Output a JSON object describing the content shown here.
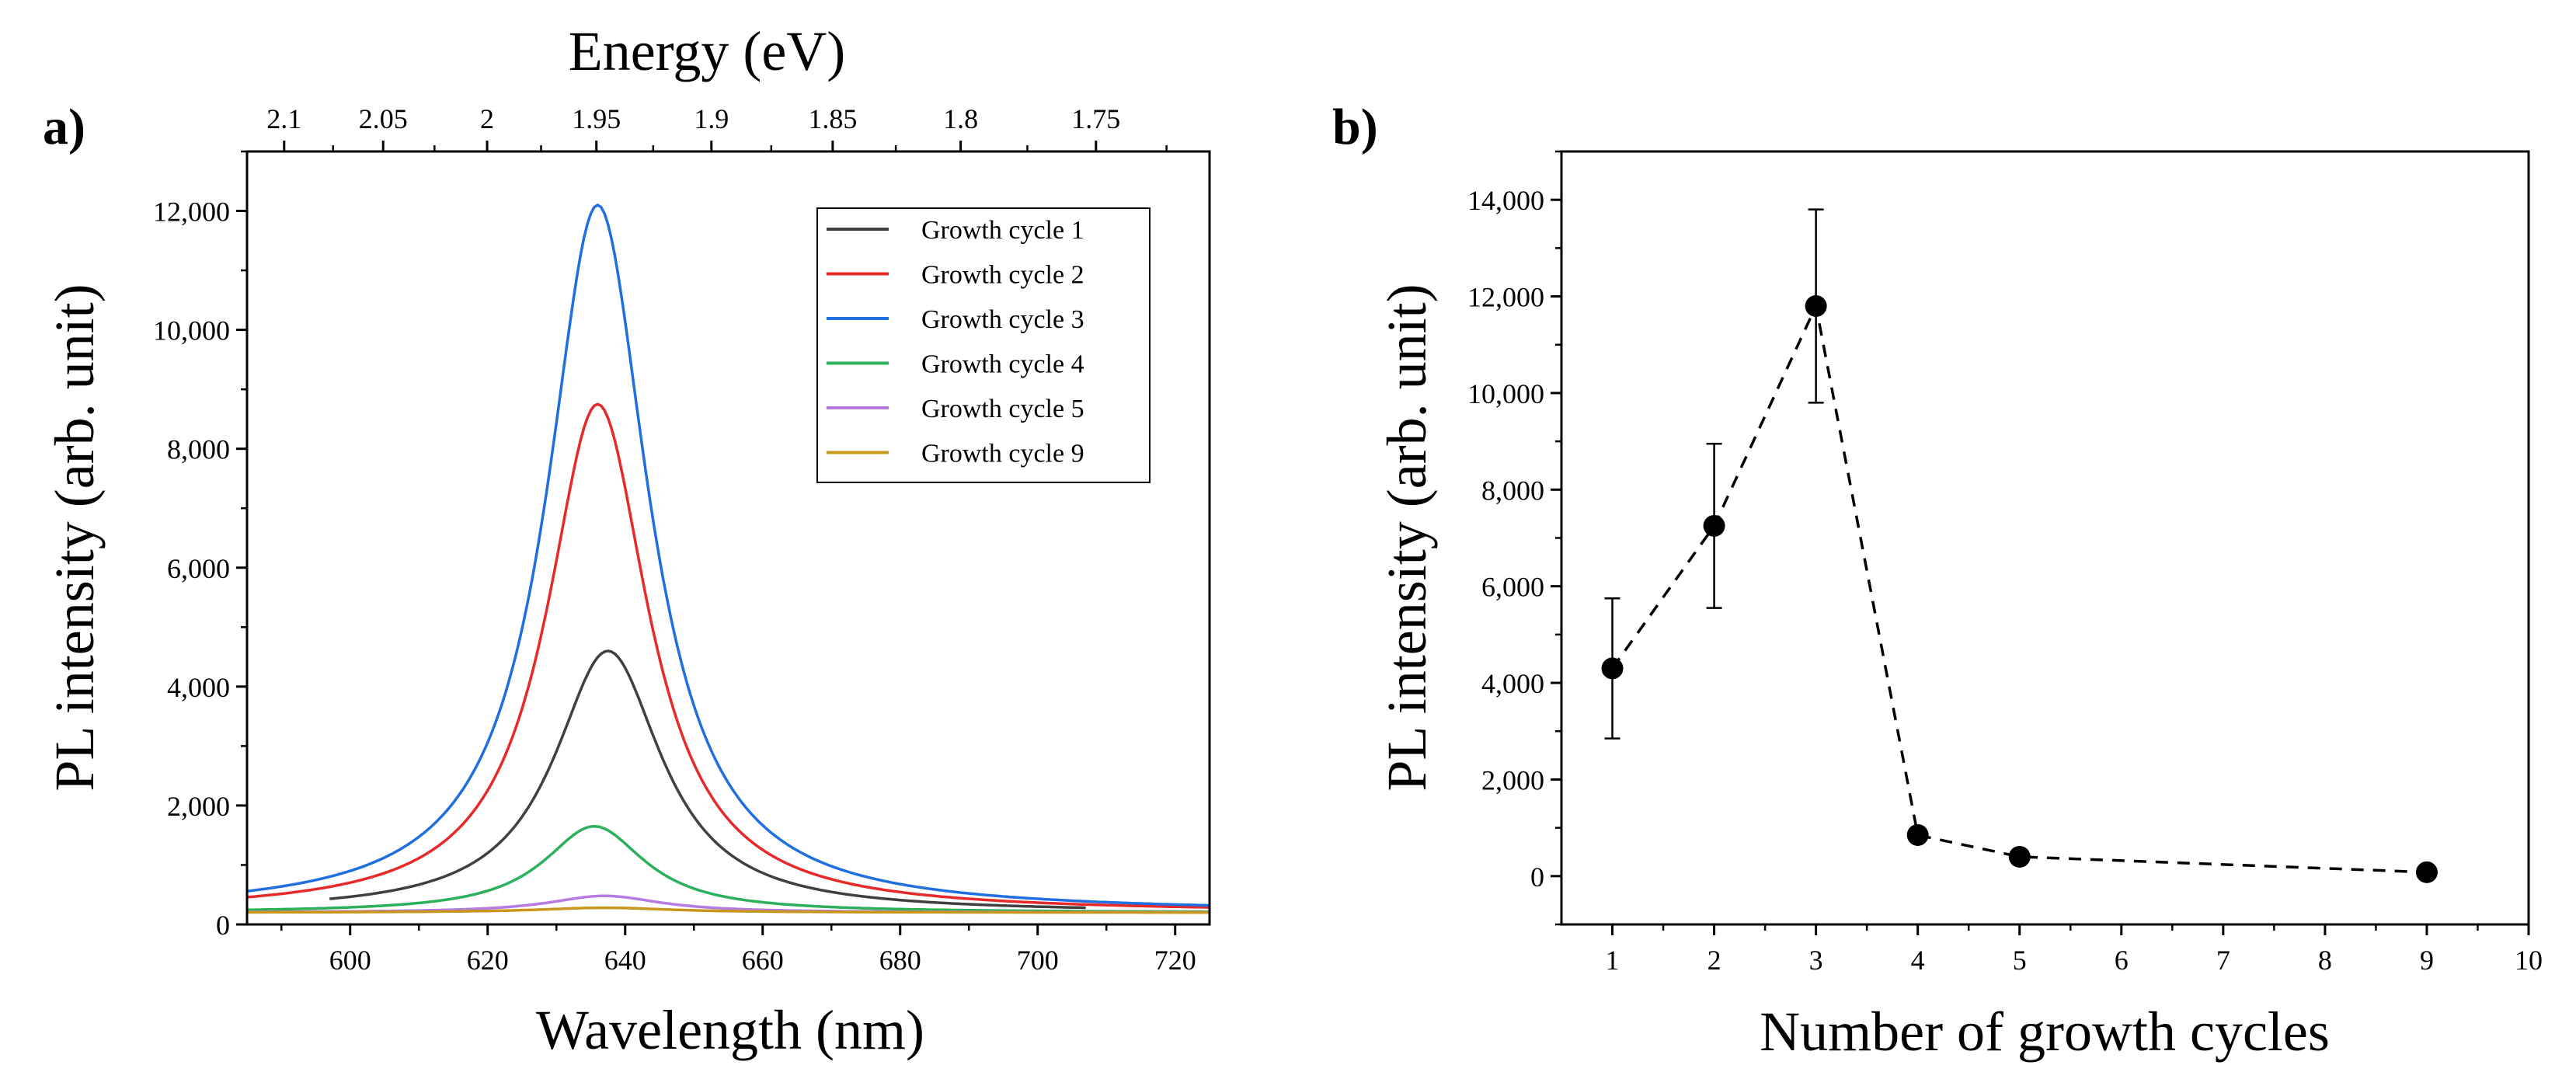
{
  "chart_data": [
    {
      "panel": "a)",
      "type": "line",
      "xlabel": "Wavelength (nm)",
      "ylabel": "PL intensity (arb. unit)",
      "top_xlabel": "Energy (eV)",
      "xlim": [
        585,
        725
      ],
      "ylim": [
        0,
        13000
      ],
      "x_ticks": [
        600,
        620,
        640,
        660,
        680,
        700,
        720
      ],
      "y_ticks": [
        0,
        2000,
        4000,
        6000,
        8000,
        10000,
        12000
      ],
      "y_tick_labels": [
        "0",
        "2,000",
        "4,000",
        "6,000",
        "8,000",
        "10,000",
        "12,000"
      ],
      "top_ticks": [
        2.1,
        2.05,
        2,
        1.95,
        1.9,
        1.85,
        1.8,
        1.75
      ],
      "top_tick_labels": [
        "2.1",
        "2.05",
        "2",
        "1.95",
        "1.9",
        "1.85",
        "1.8",
        "1.75"
      ],
      "legend_position": "top-right",
      "series": [
        {
          "name": "Growth cycle 1",
          "color": "#404040",
          "peak": 4600,
          "center": 637.5,
          "gamma": 9.5,
          "baseline": 200
        },
        {
          "name": "Growth cycle 2",
          "color": "#e8292a",
          "peak": 8750,
          "center": 636,
          "gamma": 9.0,
          "baseline": 200
        },
        {
          "name": "Growth cycle 3",
          "color": "#1f6fe0",
          "peak": 12100,
          "center": 636,
          "gamma": 9.0,
          "baseline": 200
        },
        {
          "name": "Growth cycle 4",
          "color": "#2cb05b",
          "peak": 1650,
          "center": 635.5,
          "gamma": 9.0,
          "baseline": 200
        },
        {
          "name": "Growth cycle 5",
          "color": "#b57be0",
          "peak": 480,
          "center": 637,
          "gamma": 10.0,
          "baseline": 200
        },
        {
          "name": "Growth cycle 9",
          "color": "#c8961a",
          "peak": 280,
          "center": 637,
          "gamma": 12.0,
          "baseline": 200
        }
      ]
    },
    {
      "panel": "b)",
      "type": "scatter",
      "xlabel": "Number of growth cycles",
      "ylabel": "PL intensity (arb. unit)",
      "xlim": [
        0.5,
        10
      ],
      "ylim": [
        -1000,
        15000
      ],
      "x_ticks": [
        1,
        2,
        3,
        4,
        5,
        6,
        7,
        8,
        9,
        10
      ],
      "y_ticks": [
        0,
        2000,
        4000,
        6000,
        8000,
        10000,
        12000,
        14000
      ],
      "y_tick_labels": [
        "0",
        "2,000",
        "4,000",
        "6,000",
        "8,000",
        "10,000",
        "12,000",
        "14,000"
      ],
      "x": [
        1,
        2,
        3,
        4,
        5,
        9
      ],
      "values": [
        4300,
        7250,
        11800,
        850,
        400,
        80
      ],
      "error_low": [
        2850,
        5550,
        9800,
        850,
        400,
        80
      ],
      "error_high": [
        5750,
        8950,
        13800,
        850,
        400,
        80
      ],
      "line_style": "dashed"
    }
  ]
}
